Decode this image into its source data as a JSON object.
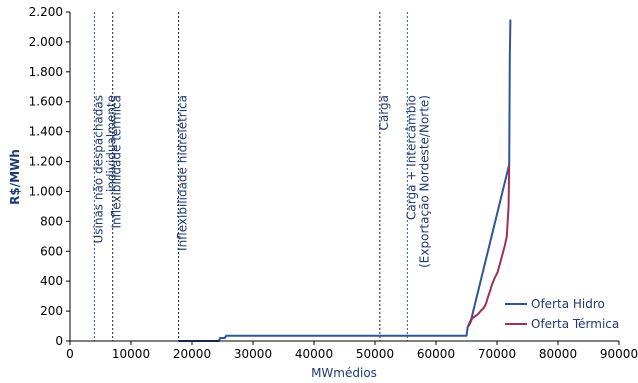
{
  "chart_data": {
    "type": "line",
    "title": "",
    "xlabel": "MWmédios",
    "ylabel": "R$/MWh",
    "xlim": [
      0,
      90000
    ],
    "ylim": [
      0,
      2200
    ],
    "x_ticks": [
      0,
      10000,
      20000,
      30000,
      40000,
      50000,
      60000,
      70000,
      80000,
      90000
    ],
    "x_tick_labels": [
      "0",
      "10000",
      "20000",
      "30000",
      "40000",
      "50000",
      "60000",
      "70000",
      "80000",
      "90000"
    ],
    "y_ticks": [
      0,
      200,
      400,
      600,
      800,
      1000,
      1200,
      1400,
      1600,
      1800,
      2000,
      2200
    ],
    "y_tick_labels": [
      "0",
      "200",
      "400",
      "600",
      "800",
      "1.000",
      "1.200",
      "1.400",
      "1.600",
      "1.800",
      "2.000",
      "2.200"
    ],
    "legend_position": "bottom-right",
    "series": [
      {
        "name": "Oferta Hidro",
        "color": "#2f5597",
        "x": [
          17800,
          24400,
          24600,
          25400,
          25600,
          65000,
          65200,
          65800,
          72000,
          72100,
          72200
        ],
        "y": [
          0,
          0,
          20,
          20,
          35,
          35,
          95,
          150,
          1180,
          1900,
          2150
        ]
      },
      {
        "name": "Oferta Térmica",
        "color": "#a0305a",
        "x": [
          65200,
          65500,
          65900,
          66400,
          66900,
          67300,
          67800,
          68200,
          68500,
          68900,
          69200,
          69600,
          70100,
          70500,
          70900,
          71300,
          71600,
          71900,
          72000
        ],
        "y": [
          95,
          110,
          150,
          165,
          180,
          200,
          220,
          250,
          290,
          340,
          380,
          420,
          460,
          520,
          580,
          640,
          700,
          900,
          1180
        ]
      }
    ],
    "vlines": [
      {
        "x": 4000,
        "label_lines": [
          "Usinas não despachadas",
          "individualmente"
        ],
        "color": "#2f5597"
      },
      {
        "x": 7000,
        "label_lines": [
          "Inflexibilidade térmica"
        ],
        "color": "#1a1a1a"
      },
      {
        "x": 17800,
        "label_lines": [
          "Inflexibilidade hidrelétrica"
        ],
        "color": "#1a1a1a"
      },
      {
        "x": 50800,
        "label_lines": [
          "Carga"
        ],
        "color": "#1a1a1a"
      },
      {
        "x": 55300,
        "label_lines": [
          "Carga + Intercâmbio",
          "(Exportação Nordeste/Norte)"
        ],
        "color": "#2f5597"
      }
    ]
  }
}
